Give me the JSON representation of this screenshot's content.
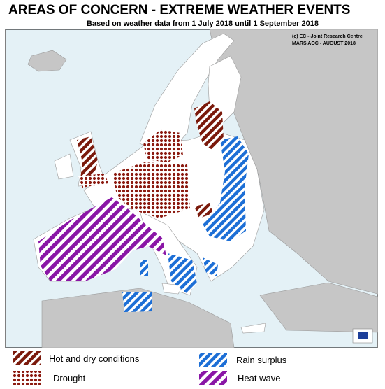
{
  "header": {
    "title": "AREAS OF CONCERN - EXTREME WEATHER EVENTS",
    "subtitle": "Based on weather data from 1 July 2018 until 1 September 2018"
  },
  "credits": [
    "(c) EC - Joint Research Centre",
    "MARS AOC - AUGUST 2018"
  ],
  "legend": [
    {
      "label": "Hot and dry conditions"
    },
    {
      "label": "Drought"
    },
    {
      "label": "Rain surplus"
    },
    {
      "label": "Heat wave"
    }
  ]
}
